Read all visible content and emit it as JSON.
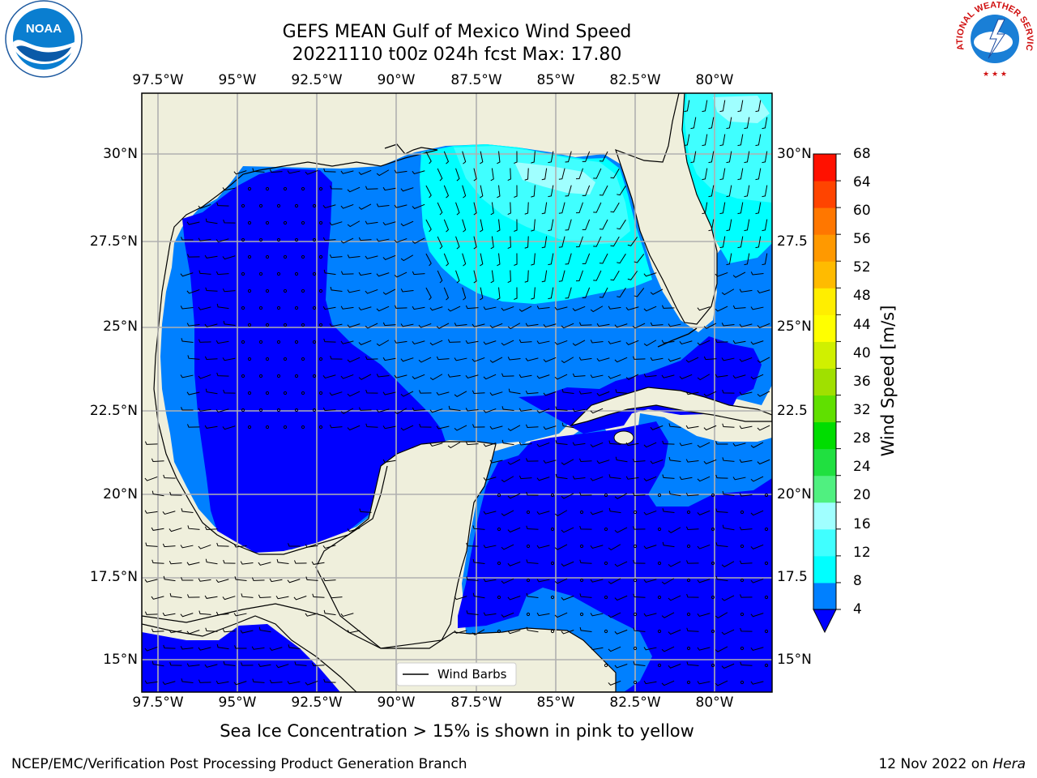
{
  "title": {
    "line1": "GEFS MEAN Gulf of Mexico Wind Speed",
    "line2": "20221110 t00z 024h fcst   Max: 17.80"
  },
  "longitude_ticks": [
    "97.5°W",
    "95°W",
    "92.5°W",
    "90°W",
    "87.5°W",
    "85°W",
    "82.5°W",
    "80°W"
  ],
  "latitude_ticks": [
    "30°N",
    "27.5°N",
    "25°N",
    "22.5°N",
    "20°N",
    "17.5°N",
    "15°N"
  ],
  "latitude_ticks_right": [
    "30°N",
    "27.5",
    "25°N",
    "22.5",
    "20°N",
    "17.5",
    "15°N"
  ],
  "legend": {
    "label": "Wind Barbs"
  },
  "colorbar": {
    "title": "Wind Speed [m/s]",
    "ticks": [
      "4",
      "8",
      "12",
      "16",
      "20",
      "24",
      "28",
      "32",
      "36",
      "40",
      "44",
      "48",
      "52",
      "56",
      "60",
      "64",
      "68"
    ],
    "colors": [
      "#0080ff",
      "#00ffff",
      "#40ffff",
      "#a0ffff",
      "#50f080",
      "#20e040",
      "#00dd00",
      "#60e000",
      "#a0e000",
      "#d0f000",
      "#ffff00",
      "#ffee00",
      "#ffbb00",
      "#ff9900",
      "#ff7700",
      "#ff4400",
      "#ff1100"
    ],
    "under_color": "#0000ff"
  },
  "colors": {
    "land": "#efefdc",
    "wind_0_4": "#0000ff",
    "wind_4_8": "#0080ff",
    "wind_8_12": "#00ffff",
    "wind_12_16": "#40ffff",
    "wind_16_20": "#a0ffff",
    "grid": "#b0b0b0"
  },
  "logos": {
    "left": "NOAA",
    "right": "NATIONAL WEATHER SERVICE"
  },
  "footer": {
    "note": "Sea Ice Concentration > 15% is shown in pink to yellow",
    "branch": "NCEP/EMC/Verification Post Processing Product Generation Branch",
    "date": "12 Nov 2022 on",
    "machine": "Hera"
  }
}
